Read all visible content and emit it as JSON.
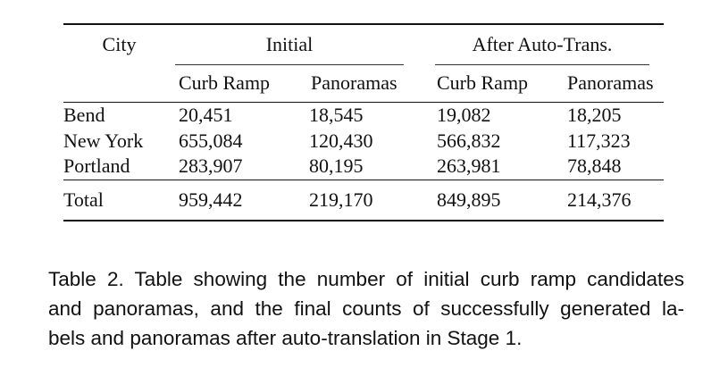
{
  "table": {
    "header_group": {
      "city": "City",
      "initial": "Initial",
      "after": "After Auto-Trans."
    },
    "header_sub": [
      "Curb Ramp",
      "Panoramas",
      "Curb Ramp",
      "Panoramas"
    ],
    "rows": [
      {
        "city": "Bend",
        "initial_curb": "20,451",
        "initial_pano": "18,545",
        "after_curb": "19,082",
        "after_pano": "18,205"
      },
      {
        "city": "New York",
        "initial_curb": "655,084",
        "initial_pano": "120,430",
        "after_curb": "566,832",
        "after_pano": "117,323"
      },
      {
        "city": "Portland",
        "initial_curb": "283,907",
        "initial_pano": "80,195",
        "after_curb": "263,981",
        "after_pano": "78,848"
      }
    ],
    "total": {
      "label": "Total",
      "initial_curb": "959,442",
      "initial_pano": "219,170",
      "after_curb": "849,895",
      "after_pano": "214,376"
    }
  },
  "caption": {
    "lines": [
      "Table 2. Table showing the number of initial curb ramp candidates",
      "and panoramas, and the final counts of successfully generated la-",
      "bels and panoramas after auto-translation in Stage 1."
    ]
  }
}
